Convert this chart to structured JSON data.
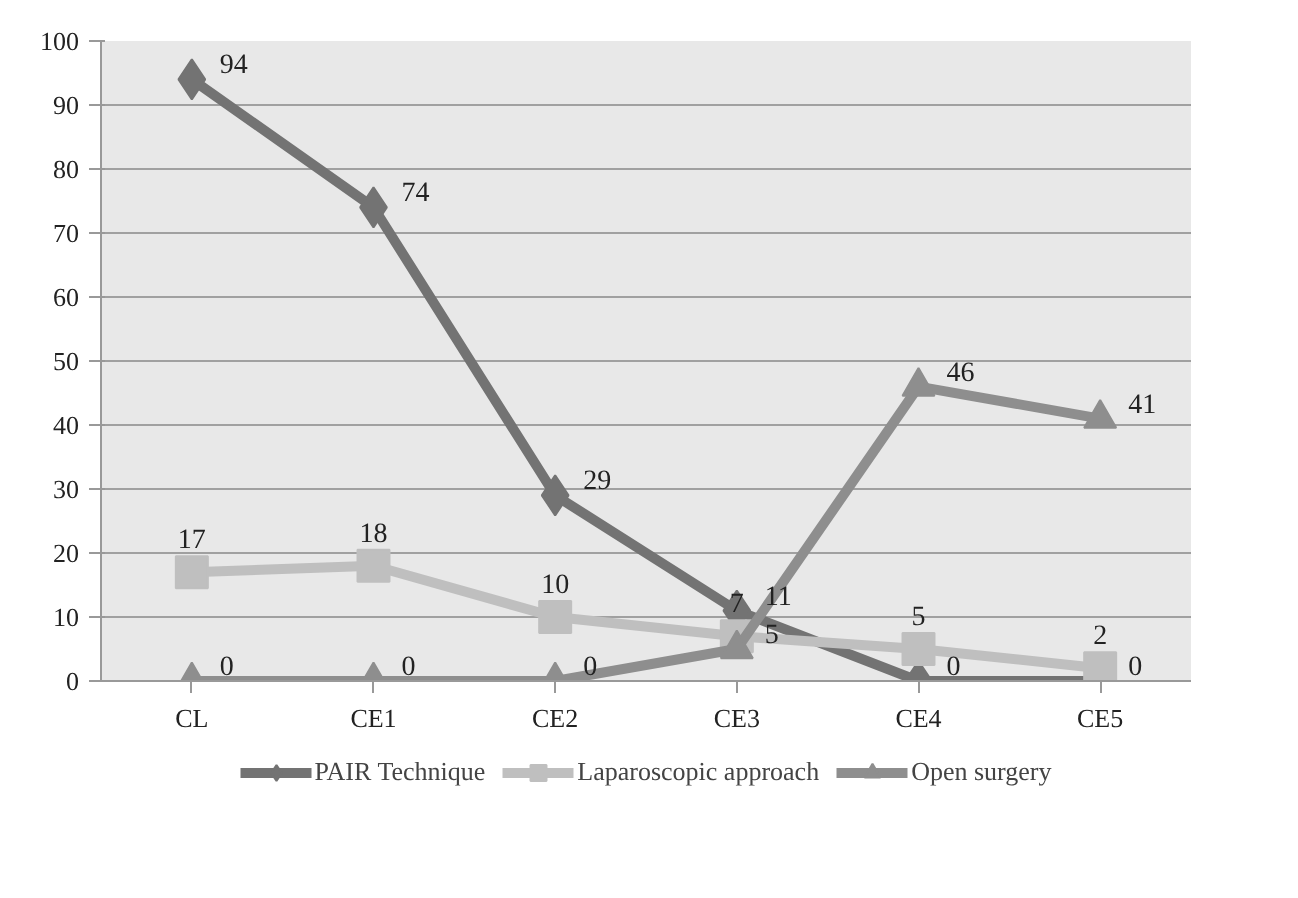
{
  "chart_data": {
    "type": "line",
    "categories": [
      "CL",
      "CE1",
      "CE2",
      "CE3",
      "CE4",
      "CE5"
    ],
    "series": [
      {
        "name": "PAIR Technique",
        "color": "#737373",
        "marker": "diamond",
        "values": [
          94,
          74,
          29,
          11,
          0,
          0
        ]
      },
      {
        "name": "Laparoscopic approach",
        "color": "#bfbfbf",
        "marker": "square",
        "values": [
          17,
          18,
          10,
          7,
          5,
          2
        ]
      },
      {
        "name": "Open surgery",
        "color": "#8e8e8e",
        "marker": "triangle",
        "values": [
          0,
          0,
          0,
          5,
          46,
          41
        ]
      }
    ],
    "ylim": [
      0,
      100
    ],
    "yticks": [
      0,
      10,
      20,
      30,
      40,
      50,
      60,
      70,
      80,
      90,
      100
    ],
    "grid": "y",
    "legend": "bottom",
    "data_labels": true,
    "line_style": "solid"
  }
}
